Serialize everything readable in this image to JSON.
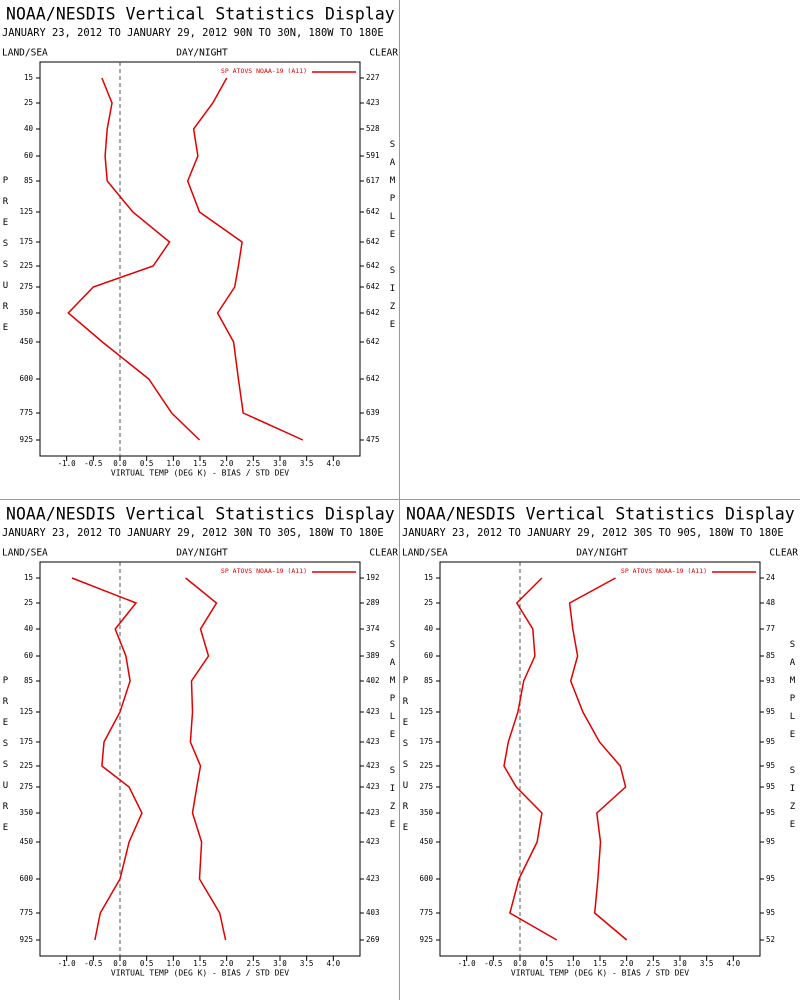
{
  "chart_data": [
    {
      "type": "line",
      "title": "NOAA/NESDIS Vertical Statistics Display",
      "subtitle": "JANUARY 23, 2012 TO JANUARY 29, 2012  90N TO 30N, 180W TO 180E",
      "land_sea_label": "LAND/SEA",
      "day_night_label": "DAY/NIGHT",
      "clear_label": "CLEAR",
      "ylabel": "PRESSURE",
      "y2label": "SAMPLE SIZE",
      "xlabel": "VIRTUAL TEMP (DEG K) - BIAS / STD DEV",
      "legend": "SP ATOVS NOAA-19 (A11)",
      "categories": [
        "15",
        "25",
        "40",
        "60",
        "85",
        "125",
        "175",
        "225",
        "275",
        "350",
        "450",
        "600",
        "775",
        "925"
      ],
      "sample_sizes": [
        227,
        423,
        528,
        591,
        617,
        642,
        642,
        642,
        642,
        642,
        642,
        642,
        639,
        475
      ],
      "series": [
        {
          "color": "#e00000",
          "values": [
            -0.34,
            -0.15,
            -0.24,
            -0.28,
            -0.24,
            0.24,
            0.93,
            0.62,
            -0.5,
            -0.97,
            -0.33,
            0.54,
            0.97,
            1.49
          ]
        },
        {
          "color": "#e00000",
          "values": [
            2.0,
            1.74,
            1.38,
            1.46,
            1.27,
            1.49,
            2.29,
            2.22,
            2.15,
            1.83,
            2.13,
            2.22,
            2.31,
            3.43
          ]
        }
      ],
      "xlim": [
        -1.5,
        4.5
      ],
      "xticks": [
        {
          "value": -1,
          "label": "-1.0"
        },
        -0.5,
        {
          "value": 0,
          "label": "0.0"
        },
        0.5,
        {
          "value": 1,
          "label": "1.0"
        },
        1.5,
        {
          "value": 2,
          "label": "2.0"
        },
        2.5,
        {
          "value": 3,
          "label": "3.0"
        },
        3.5,
        {
          "value": 4,
          "label": "4.0"
        }
      ]
    },
    {
      "type": "line",
      "title": "NOAA/NESDIS Vertical Statistics Display",
      "subtitle": "JANUARY 23, 2012 TO JANUARY 29, 2012  30N TO 30S, 180W TO 180E",
      "land_sea_label": "LAND/SEA",
      "day_night_label": "DAY/NIGHT",
      "clear_label": "CLEAR",
      "ylabel": "PRESSURE",
      "y2label": "SAMPLE SIZE",
      "xlabel": "VIRTUAL TEMP (DEG K) - BIAS / STD DEV",
      "legend": "SP ATOVS NOAA-19 (A11)",
      "categories": [
        "15",
        "25",
        "40",
        "60",
        "85",
        "125",
        "175",
        "225",
        "275",
        "350",
        "450",
        "600",
        "775",
        "925"
      ],
      "sample_sizes": [
        192,
        289,
        374,
        389,
        402,
        423,
        423,
        423,
        423,
        423,
        423,
        423,
        403,
        269
      ],
      "series": [
        {
          "color": "#e00000",
          "values": [
            -0.9,
            0.3,
            -0.09,
            0.11,
            0.19,
            0.0,
            -0.3,
            -0.34,
            0.17,
            0.41,
            0.17,
            0.0,
            -0.37,
            -0.47
          ]
        },
        {
          "color": "#e00000",
          "values": [
            1.23,
            1.81,
            1.51,
            1.66,
            1.34,
            1.36,
            1.32,
            1.51,
            1.44,
            1.36,
            1.53,
            1.49,
            1.87,
            1.98
          ]
        }
      ],
      "xlim": [
        -1.5,
        4.5
      ],
      "xticks": [
        {
          "value": -1,
          "label": "-1.0"
        },
        -0.5,
        {
          "value": 0,
          "label": "0.0"
        },
        0.5,
        {
          "value": 1,
          "label": "1.0"
        },
        1.5,
        {
          "value": 2,
          "label": "2.0"
        },
        2.5,
        {
          "value": 3,
          "label": "3.0"
        },
        3.5,
        {
          "value": 4,
          "label": "4.0"
        }
      ]
    },
    {
      "type": "line",
      "title": "NOAA/NESDIS Vertical Statistics Display",
      "subtitle": "JANUARY 23, 2012 TO JANUARY 29, 2012  30S TO 90S, 180W TO 180E",
      "land_sea_label": "LAND/SEA",
      "day_night_label": "DAY/NIGHT",
      "clear_label": "CLEAR",
      "ylabel": "PRESSURE",
      "y2label": "SAMPLE SIZE",
      "xlabel": "VIRTUAL TEMP (DEG K) - BIAS / STD DEV",
      "legend": "SP ATOVS NOAA-19 (A11)",
      "categories": [
        "15",
        "25",
        "40",
        "60",
        "85",
        "125",
        "175",
        "225",
        "275",
        "350",
        "450",
        "600",
        "775",
        "925"
      ],
      "sample_sizes": [
        24,
        48,
        77,
        85,
        93,
        95,
        95,
        95,
        95,
        95,
        95,
        95,
        95,
        52
      ],
      "series": [
        {
          "color": "#e00000",
          "values": [
            0.41,
            -0.06,
            0.24,
            0.28,
            0.07,
            -0.04,
            -0.22,
            -0.3,
            -0.07,
            0.41,
            0.32,
            -0.02,
            -0.19,
            0.69
          ]
        },
        {
          "color": "#e00000",
          "values": [
            1.79,
            0.93,
            0.99,
            1.08,
            0.95,
            1.18,
            1.49,
            1.88,
            1.98,
            1.44,
            1.51,
            1.46,
            1.4,
            2.0
          ]
        }
      ],
      "xlim": [
        -1.5,
        4.5
      ],
      "xticks": [
        {
          "value": -1,
          "label": "-1.0"
        },
        -0.5,
        {
          "value": 0,
          "label": "0.0"
        },
        0.5,
        {
          "value": 1,
          "label": "1.0"
        },
        1.5,
        {
          "value": 2,
          "label": "2.0"
        },
        2.5,
        {
          "value": 3,
          "label": "3.0"
        },
        3.5,
        {
          "value": 4,
          "label": "4.0"
        }
      ]
    }
  ]
}
